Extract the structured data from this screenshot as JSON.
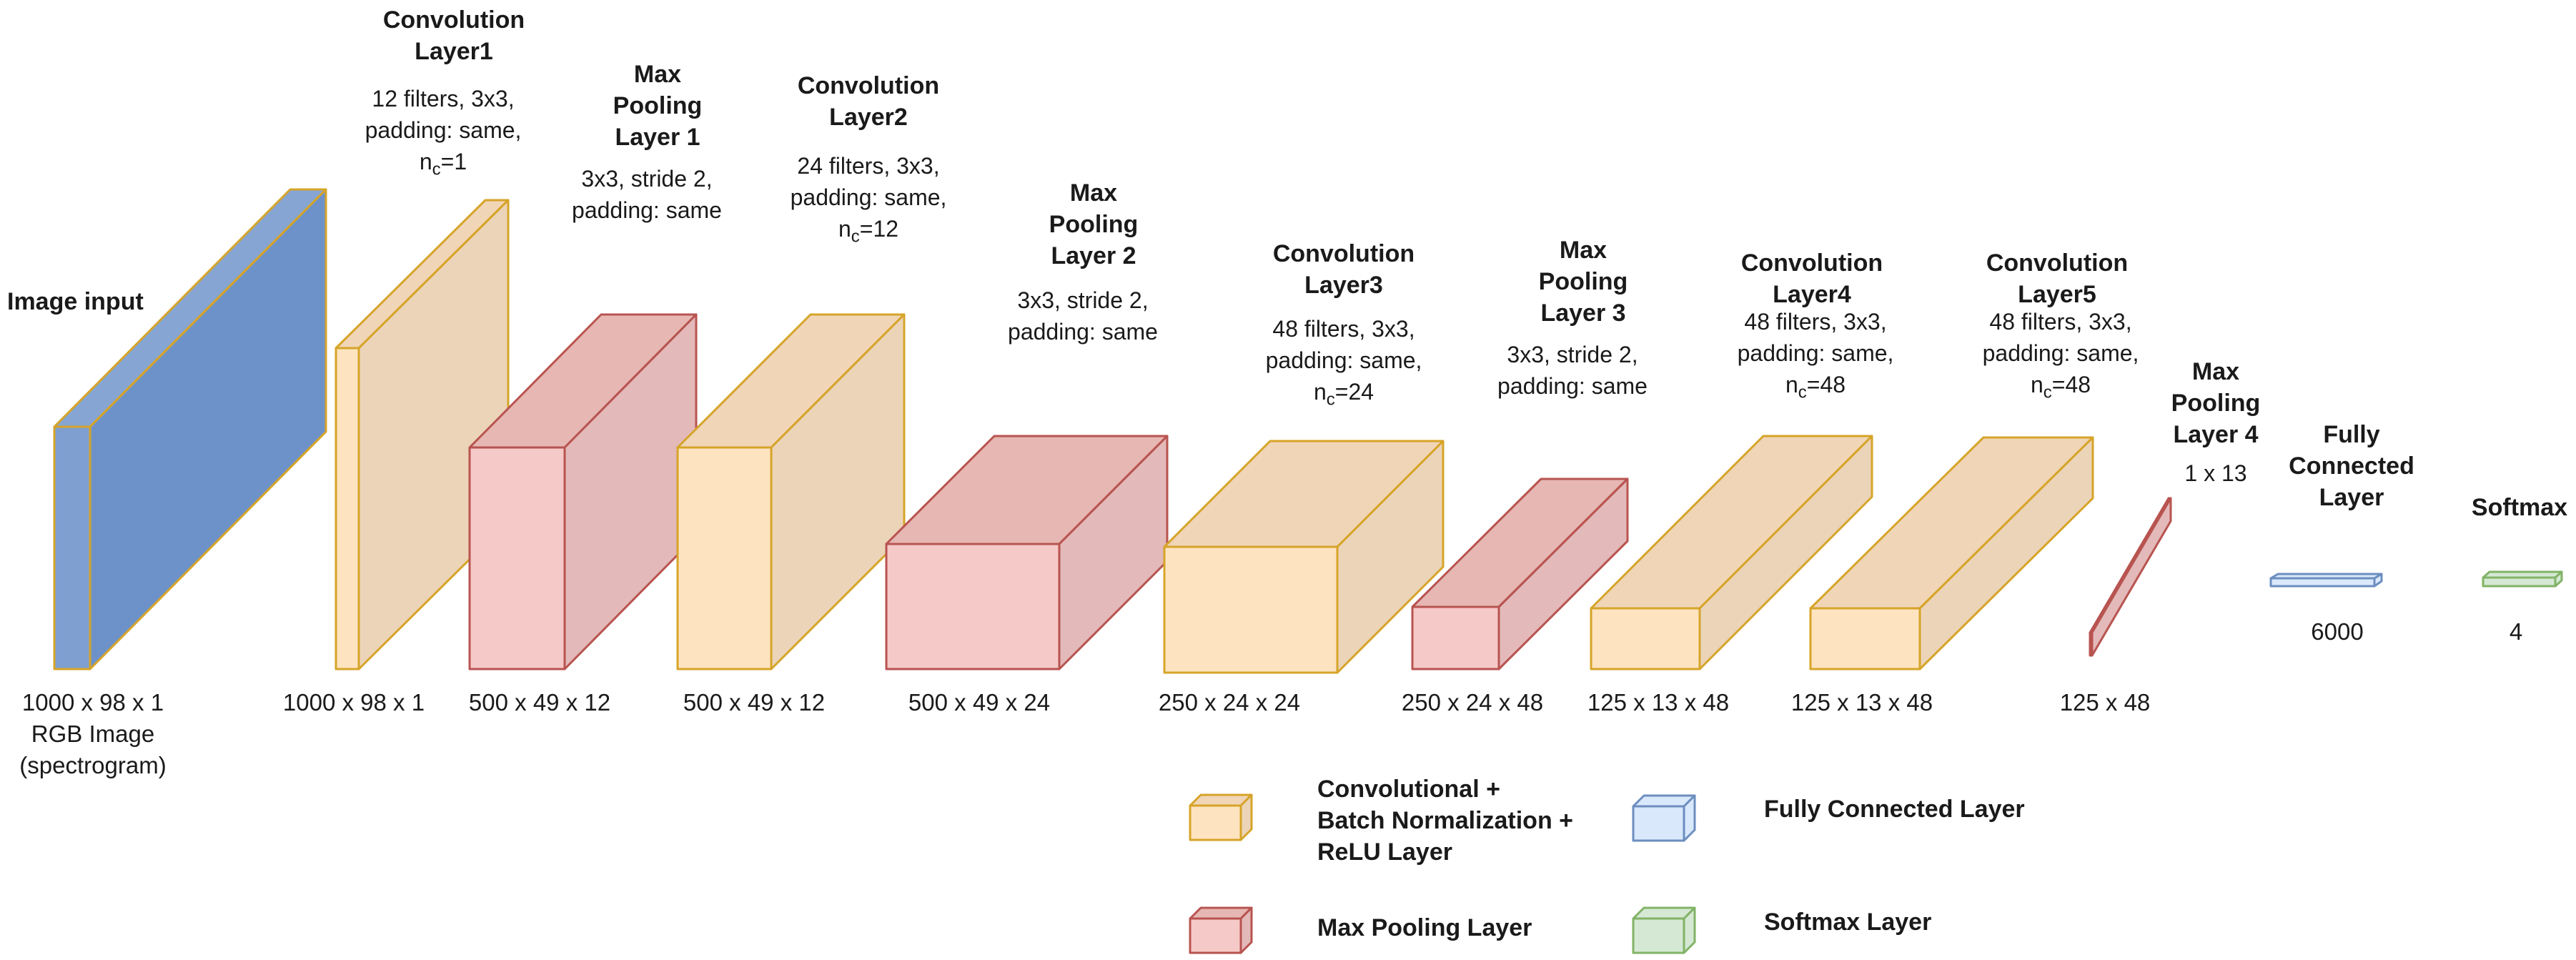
{
  "palette": {
    "input_front": "#7f9fd0",
    "input_top": "#86a5d2",
    "input_side": "#6d92c9",
    "input_stroke": "#d6a429",
    "conv_front": "#fde3c0",
    "conv_top": "#f0d5b7",
    "conv_side": "#ecd4b8",
    "conv_stroke": "#d6a429",
    "pool_front": "#f5c9c7",
    "pool_top": "#e6b7b3",
    "pool_side": "#e3b9b9",
    "pool_stroke": "#b85450",
    "fc_front": "#dae8fc",
    "fc_stroke": "#6c8ebf",
    "soft_front": "#d5e8d4",
    "soft_stroke": "#82b366"
  },
  "image_input": {
    "title": "Image input",
    "dim_lines": [
      "1000 x 98 x 1",
      "RGB Image",
      "(spectrogram)"
    ]
  },
  "layers": [
    {
      "kind": "conv",
      "title_lines": [
        "Convolution",
        "Layer1"
      ],
      "desc_lines": [
        "12 filters, 3x3,",
        "padding: same,",
        "n_c=1"
      ],
      "dim": "1000 x 98 x 1"
    },
    {
      "kind": "pool",
      "title_lines": [
        "Max",
        "Pooling",
        "Layer 1"
      ],
      "desc_lines": [
        "3x3, stride 2,",
        "padding: same"
      ],
      "dim": "500 x 49 x 12"
    },
    {
      "kind": "conv",
      "title_lines": [
        "Convolution",
        "Layer2"
      ],
      "desc_lines": [
        "24 filters, 3x3,",
        "padding: same,",
        "n_c=12"
      ],
      "dim": "500 x 49 x 12"
    },
    {
      "kind": "pool",
      "title_lines": [
        "Max",
        "Pooling",
        "Layer 2"
      ],
      "desc_lines": [
        "3x3, stride 2,",
        "padding: same"
      ],
      "dim": "500 x 49 x 24"
    },
    {
      "kind": "conv",
      "title_lines": [
        "Convolution",
        "Layer3"
      ],
      "desc_lines": [
        "48 filters, 3x3,",
        "padding: same,",
        "n_c=24"
      ],
      "dim": "250 x 24 x 24"
    },
    {
      "kind": "pool",
      "title_lines": [
        "Max",
        "Pooling",
        "Layer 3"
      ],
      "desc_lines": [
        "3x3, stride 2,",
        "padding: same"
      ],
      "dim": "250 x 24 x 48"
    },
    {
      "kind": "conv",
      "title_lines": [
        "Convolution",
        "Layer4"
      ],
      "desc_lines": [
        "48 filters, 3x3,",
        "padding: same,",
        "n_c=48"
      ],
      "dim": "125 x 13 x 48"
    },
    {
      "kind": "conv",
      "title_lines": [
        "Convolution",
        "Layer5"
      ],
      "desc_lines": [
        "48 filters, 3x3,",
        "padding: same,",
        "n_c=48"
      ],
      "dim": "125 x 13 x 48"
    },
    {
      "kind": "pool",
      "title_lines": [
        "Max",
        "Pooling",
        "Layer 4"
      ],
      "desc_lines": [
        "1 x 13"
      ],
      "dim": "125 x 48"
    },
    {
      "kind": "fc",
      "title_lines": [
        "Fully",
        "Connected",
        "Layer"
      ],
      "desc_lines": [],
      "dim": "6000"
    },
    {
      "kind": "softmax",
      "title_lines": [
        "Softmax"
      ],
      "desc_lines": [],
      "dim": "4"
    }
  ],
  "legend": {
    "conv_lines": [
      "Convolutional +",
      "Batch Normalization +",
      "ReLU Layer"
    ],
    "pool": "Max Pooling Layer",
    "fc": "Fully Connected Layer",
    "softmax": "Softmax Layer"
  }
}
